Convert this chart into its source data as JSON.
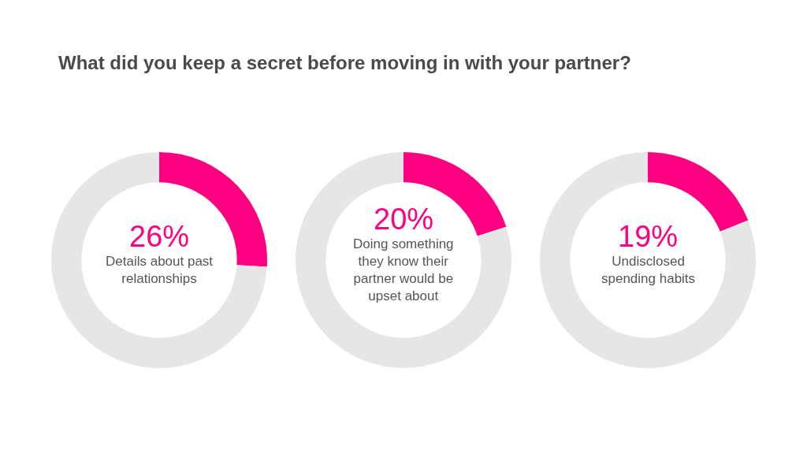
{
  "chart_data": [
    {
      "type": "donut",
      "title": "What did you keep a secret before moving in with your partner?",
      "categories": [
        "Details about past relationships",
        null
      ],
      "values": [
        26,
        74
      ],
      "colors": [
        "#ff0080",
        "#e6e6e6"
      ],
      "value_labels": [
        "26%",
        null
      ]
    },
    {
      "type": "donut",
      "categories": [
        "Doing something they know their partner would be upset about",
        null
      ],
      "values": [
        20,
        80
      ],
      "colors": [
        "#ff0080",
        "#e6e6e6"
      ],
      "value_labels": [
        "20%",
        null
      ]
    },
    {
      "type": "donut",
      "categories": [
        "Undisclosed spending habits",
        null
      ],
      "values": [
        19,
        81
      ],
      "colors": [
        "#ff0080",
        "#e6e6e6"
      ],
      "value_labels": [
        "19%",
        null
      ]
    }
  ]
}
